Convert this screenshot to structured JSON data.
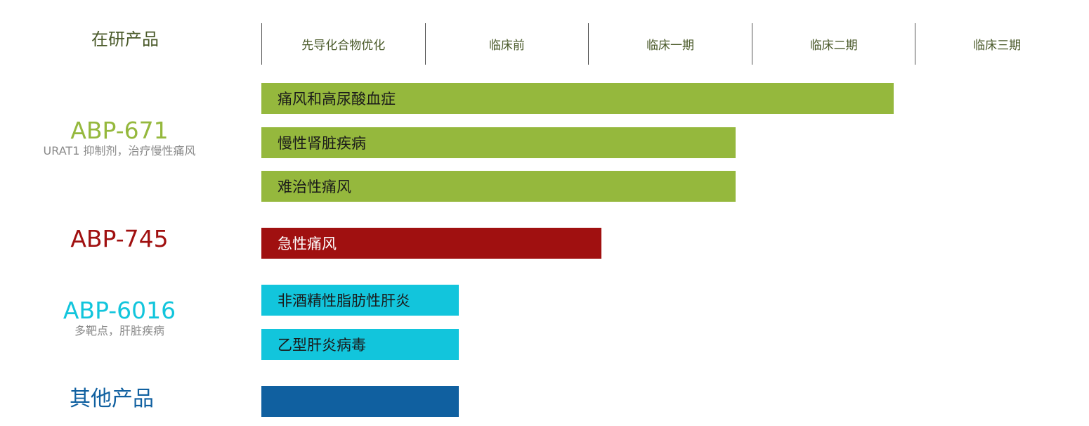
{
  "chart_data": {
    "type": "bar",
    "orientation": "horizontal",
    "title": "",
    "header_label": "在研产品",
    "stages": [
      "先导化合物优化",
      "临床前",
      "临床一期",
      "临床二期",
      "临床三期"
    ],
    "xlim": [
      0,
      5
    ],
    "products": [
      {
        "name": "ABP-671",
        "subtitle": "URAT1 抑制剂，治疗慢性痛风",
        "color": "#95b83d",
        "indications": [
          {
            "label": "痛风和高尿酸血症",
            "progress": 3.87
          },
          {
            "label": "慢性肾脏疾病",
            "progress": 2.9
          },
          {
            "label": "难治性痛风",
            "progress": 2.9
          }
        ]
      },
      {
        "name": "ABP-745",
        "subtitle": "",
        "color": "#a01010",
        "indications": [
          {
            "label": "急性痛风",
            "progress": 2.08
          }
        ]
      },
      {
        "name": "ABP-6016",
        "subtitle": "多靶点，肝脏疾病",
        "color": "#12c5dc",
        "indications": [
          {
            "label": "非酒精性脂肪性肝炎",
            "progress": 1.21
          },
          {
            "label": "乙型肝炎病毒",
            "progress": 1.21
          }
        ]
      },
      {
        "name": "其他产品",
        "subtitle": "",
        "color": "#1060a0",
        "indications": [
          {
            "label": "",
            "progress": 1.21
          }
        ]
      }
    ]
  }
}
